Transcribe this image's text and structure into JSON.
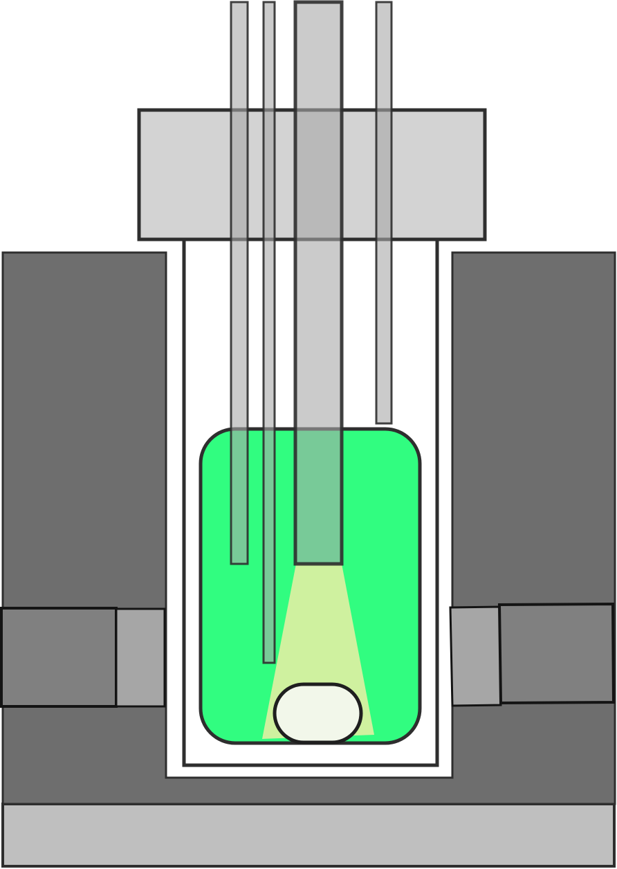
{
  "diagram": {
    "type": "schematic",
    "labels": [],
    "colors": {
      "housing_dark": "#6e6e6e",
      "housing_panel": "#808080",
      "housing_window": "#a6a6a6",
      "base": "#bfbfbf",
      "lid": "#d3d3d3",
      "rod": "#bcbcbc",
      "liquid": "#31fd80",
      "beam": "#d8f0a0",
      "sample": "#f2f7ea",
      "vessel_gap": "#ffffff",
      "outline": "#2e2e2e"
    },
    "components": [
      "base-plate",
      "housing-left-wall",
      "housing-right-wall",
      "left-side-port",
      "right-side-port",
      "vessel",
      "liquid",
      "light-cone",
      "sample-pellet",
      "lid",
      "probe-rods"
    ]
  }
}
